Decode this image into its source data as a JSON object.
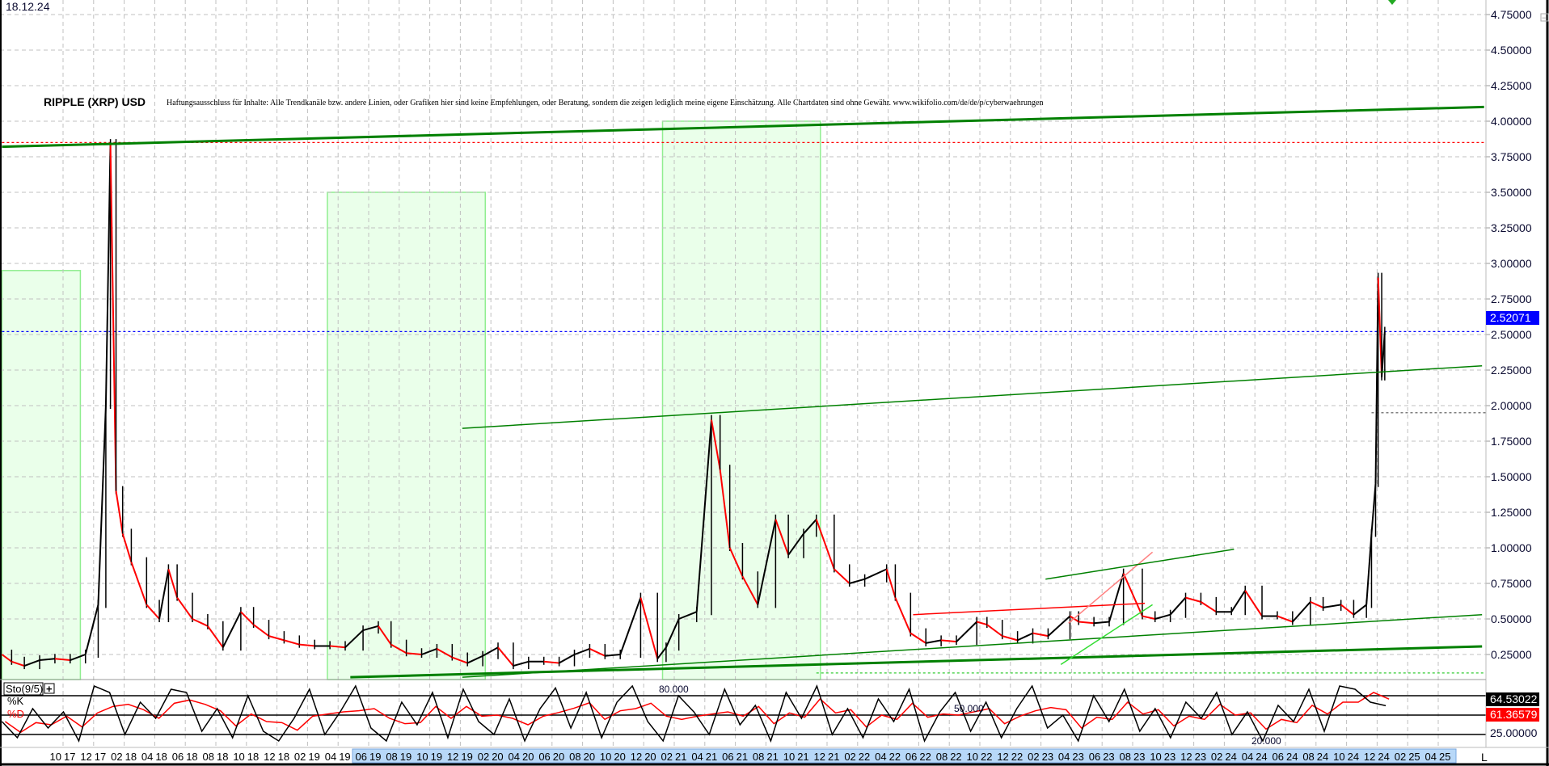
{
  "header": {
    "date": "18.12.24",
    "title": "RIPPLE (XRP) USD",
    "disclaimer": "Haftungsausschluss für Inhalte: Alle Trendkanäle bzw. andere Linien, oder Grafiken hier sind keine Empfehlungen, oder Beratung, sondern die zeigen lediglich meine eigene Einschätzung. Alle Chartdaten sind ohne Gewähr.  www.wikifolio.com/de/de/p/cyberwaehrungen"
  },
  "colors": {
    "trend_green": "#008000",
    "zone_fill": "#eaffea",
    "zone_border": "#90ee90",
    "last_price_blue": "#0000ff",
    "k_line": "#000000",
    "d_line": "#ff0000",
    "axis_highlight": "#b8d8f8"
  },
  "chart_data": [
    {
      "type": "line",
      "name": "RIPPLE (XRP) USD",
      "yaxis_ticks": [
        "4.75000",
        "4.50000",
        "4.25000",
        "4.00000",
        "3.75000",
        "3.50000",
        "3.25000",
        "3.00000",
        "2.75000",
        "2.50000",
        "2.25000",
        "2.00000",
        "1.75000",
        "1.50000",
        "1.25000",
        "1.00000",
        "0.75000",
        "0.50000",
        "0.25000"
      ],
      "ylim": [
        0.05,
        4.85
      ],
      "grid": true,
      "last_price": "2.52071",
      "series": [
        [
          "2017-06-01",
          0.25
        ],
        [
          "2017-06-20",
          0.2
        ],
        [
          "2017-07-15",
          0.17
        ],
        [
          "2017-08-15",
          0.21
        ],
        [
          "2017-09-15",
          0.22
        ],
        [
          "2017-10-15",
          0.21
        ],
        [
          "2017-11-15",
          0.25
        ],
        [
          "2017-12-10",
          0.6
        ],
        [
          "2017-12-25",
          2.0
        ],
        [
          "2018-01-04",
          3.84
        ],
        [
          "2018-01-15",
          1.4
        ],
        [
          "2018-01-28",
          1.1
        ],
        [
          "2018-02-15",
          0.9
        ],
        [
          "2018-03-15",
          0.6
        ],
        [
          "2018-04-10",
          0.5
        ],
        [
          "2018-04-28",
          0.85
        ],
        [
          "2018-05-15",
          0.65
        ],
        [
          "2018-06-15",
          0.5
        ],
        [
          "2018-07-15",
          0.45
        ],
        [
          "2018-08-15",
          0.3
        ],
        [
          "2018-09-20",
          0.55
        ],
        [
          "2018-10-15",
          0.46
        ],
        [
          "2018-11-15",
          0.38
        ],
        [
          "2018-12-15",
          0.35
        ],
        [
          "2019-01-15",
          0.32
        ],
        [
          "2019-02-15",
          0.31
        ],
        [
          "2019-03-15",
          0.31
        ],
        [
          "2019-04-15",
          0.3
        ],
        [
          "2019-05-20",
          0.42
        ],
        [
          "2019-06-20",
          0.45
        ],
        [
          "2019-07-15",
          0.32
        ],
        [
          "2019-08-15",
          0.26
        ],
        [
          "2019-09-15",
          0.25
        ],
        [
          "2019-10-15",
          0.29
        ],
        [
          "2019-11-15",
          0.23
        ],
        [
          "2019-12-15",
          0.19
        ],
        [
          "2020-01-15",
          0.24
        ],
        [
          "2020-02-15",
          0.3
        ],
        [
          "2020-03-15",
          0.17
        ],
        [
          "2020-04-15",
          0.2
        ],
        [
          "2020-05-15",
          0.2
        ],
        [
          "2020-06-15",
          0.19
        ],
        [
          "2020-07-15",
          0.25
        ],
        [
          "2020-08-15",
          0.29
        ],
        [
          "2020-09-15",
          0.24
        ],
        [
          "2020-10-15",
          0.25
        ],
        [
          "2020-11-25",
          0.65
        ],
        [
          "2020-12-28",
          0.22
        ],
        [
          "2021-01-15",
          0.3
        ],
        [
          "2021-02-10",
          0.5
        ],
        [
          "2021-03-15",
          0.55
        ],
        [
          "2021-04-14",
          1.9
        ],
        [
          "2021-05-01",
          1.55
        ],
        [
          "2021-05-20",
          1.0
        ],
        [
          "2021-06-15",
          0.8
        ],
        [
          "2021-07-15",
          0.6
        ],
        [
          "2021-08-20",
          1.2
        ],
        [
          "2021-09-15",
          0.95
        ],
        [
          "2021-10-15",
          1.1
        ],
        [
          "2021-11-10",
          1.2
        ],
        [
          "2021-12-15",
          0.85
        ],
        [
          "2022-01-15",
          0.75
        ],
        [
          "2022-02-15",
          0.78
        ],
        [
          "2022-03-28",
          0.85
        ],
        [
          "2022-04-15",
          0.65
        ],
        [
          "2022-05-15",
          0.4
        ],
        [
          "2022-06-15",
          0.33
        ],
        [
          "2022-07-15",
          0.35
        ],
        [
          "2022-08-15",
          0.34
        ],
        [
          "2022-09-25",
          0.48
        ],
        [
          "2022-10-15",
          0.46
        ],
        [
          "2022-11-15",
          0.38
        ],
        [
          "2022-12-15",
          0.35
        ],
        [
          "2023-01-15",
          0.4
        ],
        [
          "2023-02-15",
          0.38
        ],
        [
          "2023-03-28",
          0.52
        ],
        [
          "2023-04-15",
          0.48
        ],
        [
          "2023-05-15",
          0.47
        ],
        [
          "2023-06-15",
          0.48
        ],
        [
          "2023-07-13",
          0.82
        ],
        [
          "2023-08-20",
          0.52
        ],
        [
          "2023-09-15",
          0.5
        ],
        [
          "2023-10-15",
          0.53
        ],
        [
          "2023-11-15",
          0.65
        ],
        [
          "2023-12-15",
          0.62
        ],
        [
          "2024-01-15",
          0.55
        ],
        [
          "2024-02-15",
          0.55
        ],
        [
          "2024-03-12",
          0.7
        ],
        [
          "2024-04-15",
          0.52
        ],
        [
          "2024-05-15",
          0.52
        ],
        [
          "2024-06-15",
          0.48
        ],
        [
          "2024-07-20",
          0.62
        ],
        [
          "2024-08-15",
          0.58
        ],
        [
          "2024-09-20",
          0.6
        ],
        [
          "2024-10-15",
          0.53
        ],
        [
          "2024-11-10",
          0.6
        ],
        [
          "2024-11-20",
          1.1
        ],
        [
          "2024-11-28",
          1.45
        ],
        [
          "2024-12-03",
          2.9
        ],
        [
          "2024-12-10",
          2.2
        ],
        [
          "2024-12-16",
          2.52
        ]
      ],
      "trendlines": [
        {
          "from": [
            "2017-06-01",
            3.82
          ],
          "to": [
            "2025-07-01",
            4.1
          ],
          "color": "#008000",
          "weight": "thick"
        },
        {
          "from": [
            "2019-12-05",
            1.84
          ],
          "to": [
            "2025-06-27",
            2.28
          ],
          "color": "#008000",
          "weight": "thin"
        },
        {
          "from": [
            "2019-04-25",
            0.09
          ],
          "to": [
            "2025-06-27",
            0.307
          ],
          "color": "#008000",
          "weight": "thick"
        },
        {
          "from": [
            "2019-12-05",
            0.09
          ],
          "to": [
            "2025-06-27",
            0.53
          ],
          "color": "#008000",
          "weight": "thin"
        },
        {
          "from": [
            "2022-05-20",
            0.53
          ],
          "to": [
            "2023-08-25",
            0.61
          ],
          "color": "#ff0000",
          "weight": "thin"
        },
        {
          "from": [
            "2023-03-25",
            0.47
          ],
          "to": [
            "2023-09-10",
            0.97
          ],
          "color": "#ff8080",
          "weight": "thin"
        },
        {
          "from": [
            "2023-02-10",
            0.78
          ],
          "to": [
            "2024-02-20",
            0.99
          ],
          "color": "#008000",
          "weight": "thin"
        },
        {
          "from": [
            "2023-03-10",
            0.18
          ],
          "to": [
            "2023-09-10",
            0.6
          ],
          "color": "#33dd33",
          "weight": "thin"
        }
      ],
      "hlines": [
        {
          "value": 3.85,
          "from": "2017-06-01",
          "color": "#ff0000"
        },
        {
          "value": 2.52071,
          "from": "2017-06-01",
          "color": "#0000ff"
        },
        {
          "value": 1.95,
          "from": "2024-11-20",
          "color": "#555555"
        },
        {
          "value": 0.12,
          "from": "2021-11-10",
          "color": "#33cc33"
        }
      ],
      "zones": [
        {
          "from": "2017-06-01",
          "to": "2017-11-05",
          "top": 2.95
        },
        {
          "from": "2019-03-10",
          "to": "2020-01-20",
          "top": 3.5
        },
        {
          "from": "2021-01-08",
          "to": "2021-11-18",
          "top": 4.0
        }
      ]
    },
    {
      "type": "line",
      "indicator": "Sto(9/5)",
      "legend": [
        "%K",
        "%D"
      ],
      "levels": [
        "80.000",
        "50.000",
        "20.000"
      ],
      "ylim": [
        0,
        100
      ],
      "last_k": "64.53022",
      "last_d": "61.36579",
      "axis_label": "25.00000",
      "start": "2017-06-01",
      "k_values": [
        40,
        15,
        60,
        30,
        55,
        10,
        95,
        85,
        20,
        70,
        45,
        90,
        85,
        25,
        60,
        15,
        80,
        25,
        10,
        45,
        90,
        20,
        55,
        95,
        30,
        10,
        70,
        35,
        85,
        15,
        90,
        40,
        20,
        75,
        10,
        60,
        92,
        30,
        85,
        15,
        70,
        95,
        40,
        10,
        80,
        55,
        20,
        90,
        35,
        65,
        10,
        85,
        45,
        95,
        20,
        60,
        15,
        75,
        40,
        90,
        10,
        55,
        85,
        25,
        70,
        15,
        60,
        95,
        30,
        50,
        10,
        80,
        40,
        90,
        25,
        60,
        15,
        70,
        45,
        85,
        20,
        55,
        10,
        65,
        40,
        90,
        25,
        95,
        90,
        70,
        64.5
      ]
    }
  ],
  "xaxis": {
    "labels": [
      [
        "10",
        "17"
      ],
      [
        "12",
        "17"
      ],
      [
        "02",
        "18"
      ],
      [
        "04",
        "18"
      ],
      [
        "06",
        "18"
      ],
      [
        "08",
        "18"
      ],
      [
        "10",
        "18"
      ],
      [
        "12",
        "18"
      ],
      [
        "02",
        "19"
      ],
      [
        "04",
        "19"
      ],
      [
        "06",
        "19"
      ],
      [
        "08",
        "19"
      ],
      [
        "10",
        "19"
      ],
      [
        "12",
        "19"
      ],
      [
        "02",
        "20"
      ],
      [
        "04",
        "20"
      ],
      [
        "06",
        "20"
      ],
      [
        "08",
        "20"
      ],
      [
        "10",
        "20"
      ],
      [
        "12",
        "20"
      ],
      [
        "02",
        "21"
      ],
      [
        "04",
        "21"
      ],
      [
        "06",
        "21"
      ],
      [
        "08",
        "21"
      ],
      [
        "10",
        "21"
      ],
      [
        "12",
        "21"
      ],
      [
        "02",
        "22"
      ],
      [
        "04",
        "22"
      ],
      [
        "06",
        "22"
      ],
      [
        "08",
        "22"
      ],
      [
        "10",
        "22"
      ],
      [
        "12",
        "22"
      ],
      [
        "02",
        "23"
      ],
      [
        "04",
        "23"
      ],
      [
        "06",
        "23"
      ],
      [
        "08",
        "23"
      ],
      [
        "10",
        "23"
      ],
      [
        "12",
        "23"
      ],
      [
        "02",
        "24"
      ],
      [
        "04",
        "24"
      ],
      [
        "06",
        "24"
      ],
      [
        "08",
        "24"
      ],
      [
        "10",
        "24"
      ],
      [
        "12",
        "24"
      ],
      [
        "02",
        "25"
      ],
      [
        "04",
        "25"
      ]
    ],
    "highlight_from": "06 19",
    "scale_button": "L"
  },
  "controls": {
    "add_indicator": "+",
    "collapse": "−"
  }
}
